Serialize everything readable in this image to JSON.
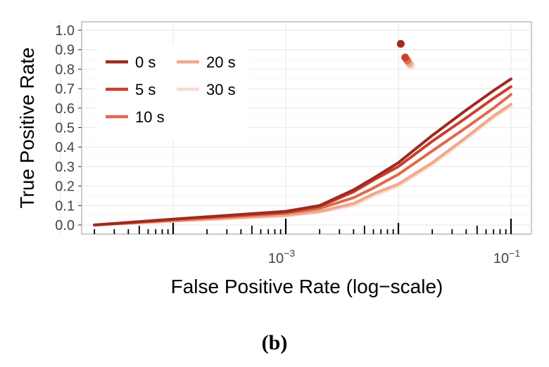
{
  "chart_data": {
    "type": "line",
    "xlabel": "False Positive Rate (log−scale)",
    "ylabel": "True Positive Rate",
    "x_scale": "log",
    "xlim": [
      1e-05,
      0.1
    ],
    "ylim": [
      0,
      1
    ],
    "x_ticks": [
      {
        "base": "10",
        "exp": "−3",
        "value": 0.001
      },
      {
        "base": "10",
        "exp": "−1",
        "value": 0.1
      }
    ],
    "y_ticks": [
      "0.0",
      "0.1",
      "0.2",
      "0.3",
      "0.4",
      "0.5",
      "0.6",
      "0.7",
      "0.8",
      "0.9",
      "1.0"
    ],
    "grid": true,
    "legend_position": "top-left",
    "caption": "(b)",
    "series": [
      {
        "name": "0 s",
        "color": "#9e2a20",
        "x": [
          2e-05,
          0.0001,
          0.001,
          0.002,
          0.004,
          0.006,
          0.01,
          0.02,
          0.04,
          0.07,
          0.1
        ],
        "y": [
          0.0,
          0.03,
          0.07,
          0.1,
          0.18,
          0.24,
          0.32,
          0.46,
          0.59,
          0.69,
          0.75
        ],
        "marker": {
          "x": 0.0105,
          "y": 0.93
        }
      },
      {
        "name": "5 s",
        "color": "#c8402e",
        "x": [
          2e-05,
          0.0001,
          0.001,
          0.002,
          0.004,
          0.006,
          0.01,
          0.02,
          0.04,
          0.07,
          0.1
        ],
        "y": [
          0.0,
          0.03,
          0.065,
          0.095,
          0.17,
          0.23,
          0.3,
          0.43,
          0.55,
          0.65,
          0.71
        ],
        "marker": {
          "x": 0.0115,
          "y": 0.86
        }
      },
      {
        "name": "10 s",
        "color": "#e0694e",
        "x": [
          2e-05,
          0.0001,
          0.001,
          0.002,
          0.004,
          0.006,
          0.01,
          0.02,
          0.04,
          0.07,
          0.1
        ],
        "y": [
          0.0,
          0.025,
          0.06,
          0.085,
          0.14,
          0.19,
          0.26,
          0.38,
          0.5,
          0.6,
          0.67
        ],
        "marker": {
          "x": 0.012,
          "y": 0.845
        }
      },
      {
        "name": "20 s",
        "color": "#efa88e",
        "x": [
          2e-05,
          0.0001,
          0.001,
          0.002,
          0.004,
          0.006,
          0.01,
          0.02,
          0.04,
          0.07,
          0.1
        ],
        "y": [
          0.0,
          0.02,
          0.05,
          0.07,
          0.11,
          0.16,
          0.21,
          0.32,
          0.45,
          0.56,
          0.62
        ],
        "marker": {
          "x": 0.0125,
          "y": 0.83
        }
      },
      {
        "name": "30 s",
        "color": "#f9dccf",
        "x": [
          2e-05,
          0.0001,
          0.001,
          0.002,
          0.004,
          0.006,
          0.01,
          0.02,
          0.04,
          0.07,
          0.1
        ],
        "y": [
          0.0,
          0.02,
          0.045,
          0.065,
          0.1,
          0.15,
          0.2,
          0.31,
          0.44,
          0.55,
          0.61
        ],
        "marker": {
          "x": 0.013,
          "y": 0.82
        }
      }
    ]
  }
}
